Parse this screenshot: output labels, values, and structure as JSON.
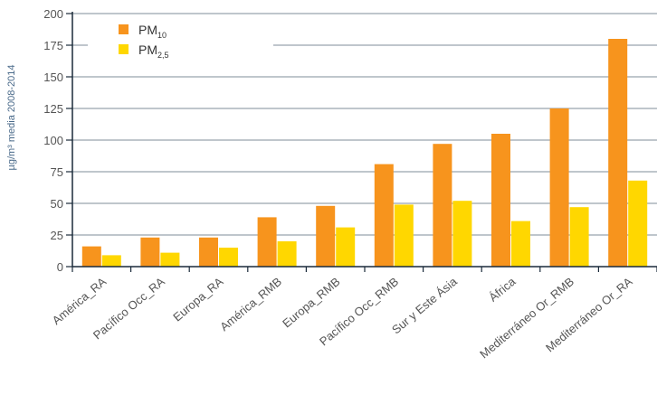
{
  "chart_data": {
    "type": "bar",
    "categories": [
      "América_RA",
      "Pacífico Occ_RA",
      "Europa_RA",
      "América_RMB",
      "Europa_RMB",
      "Pacífico Occ_RMB",
      "Sur y Este Ásia",
      "África",
      "Mediterráneo Or_RMB",
      "Mediterráneo Or_RA"
    ],
    "series": [
      {
        "name": "PM10",
        "label_main": "PM",
        "label_sub": "10",
        "color": "#f7941d",
        "values": [
          16,
          23,
          23,
          39,
          48,
          81,
          97,
          105,
          125,
          180
        ]
      },
      {
        "name": "PM2,5",
        "label_main": "PM",
        "label_sub": "2,5",
        "color": "#ffd700",
        "values": [
          9,
          11,
          15,
          20,
          31,
          49,
          52,
          36,
          47,
          68
        ]
      }
    ],
    "ylabel": "µg/m³ media 2008-2014",
    "yticks": [
      0,
      25,
      50,
      75,
      100,
      125,
      150,
      175,
      200
    ],
    "ylim": [
      0,
      200
    ],
    "grid": true,
    "legend": "top-left"
  }
}
